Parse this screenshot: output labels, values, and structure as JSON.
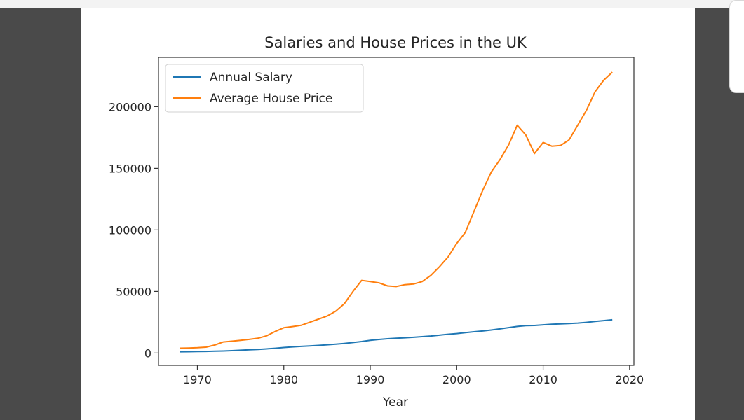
{
  "colors": {
    "page_frame": "#4a4a4a",
    "axes": "#333333",
    "text": "#262626",
    "series_salary": "#1f77b4",
    "series_house": "#ff7f0e"
  },
  "chart_data": {
    "type": "line",
    "title": "Salaries and House Prices in the UK",
    "xlabel": "Year",
    "ylabel": "",
    "xlim": [
      1965.5,
      2020.5
    ],
    "ylim": [
      -10000,
      240000
    ],
    "xticks": [
      1970,
      1980,
      1990,
      2000,
      2010,
      2020
    ],
    "yticks": [
      0,
      50000,
      100000,
      150000,
      200000
    ],
    "grid": false,
    "legend": "top-left",
    "x": [
      1968,
      1969,
      1970,
      1971,
      1972,
      1973,
      1974,
      1975,
      1976,
      1977,
      1978,
      1979,
      1980,
      1981,
      1982,
      1983,
      1984,
      1985,
      1986,
      1987,
      1988,
      1989,
      1990,
      1991,
      1992,
      1993,
      1994,
      1995,
      1996,
      1997,
      1998,
      1999,
      2000,
      2001,
      2002,
      2003,
      2004,
      2005,
      2006,
      2007,
      2008,
      2009,
      2010,
      2011,
      2012,
      2013,
      2014,
      2015,
      2016,
      2017,
      2018
    ],
    "series": [
      {
        "name": "Annual Salary",
        "color": "#1f77b4",
        "values": [
          1000,
          1100,
          1200,
          1300,
          1450,
          1650,
          1950,
          2300,
          2650,
          2950,
          3350,
          3850,
          4500,
          5000,
          5400,
          5800,
          6200,
          6700,
          7200,
          7800,
          8500,
          9300,
          10300,
          11000,
          11600,
          12000,
          12400,
          12800,
          13300,
          13800,
          14500,
          15200,
          15800,
          16600,
          17300,
          17900,
          18700,
          19600,
          20600,
          21600,
          22300,
          22400,
          22900,
          23400,
          23700,
          24000,
          24300,
          24900,
          25600,
          26300,
          27000
        ]
      },
      {
        "name": "Average House Price",
        "color": "#ff7f0e",
        "values": [
          3900,
          4100,
          4300,
          4800,
          6500,
          9000,
          9600,
          10300,
          11100,
          12000,
          14000,
          17500,
          20500,
          21500,
          22500,
          25000,
          27500,
          30000,
          34000,
          40000,
          50000,
          59000,
          58000,
          57000,
          54500,
          54000,
          55500,
          56000,
          58000,
          63000,
          70000,
          78000,
          89000,
          98000,
          115000,
          132000,
          147000,
          157000,
          169000,
          185000,
          177000,
          162000,
          171000,
          168000,
          168500,
          173000,
          185000,
          197000,
          212000,
          221500,
          228000
        ]
      }
    ]
  }
}
